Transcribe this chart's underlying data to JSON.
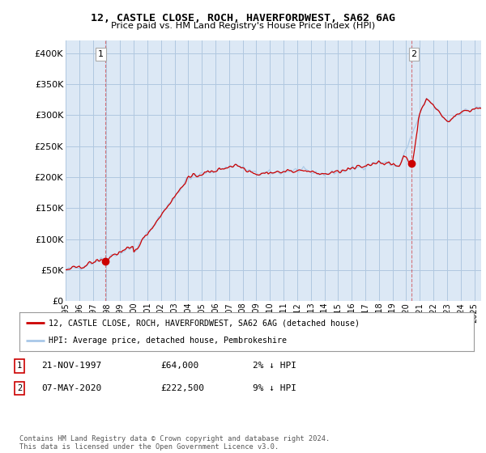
{
  "title": "12, CASTLE CLOSE, ROCH, HAVERFORDWEST, SA62 6AG",
  "subtitle": "Price paid vs. HM Land Registry's House Price Index (HPI)",
  "ytick_values": [
    0,
    50000,
    100000,
    150000,
    200000,
    250000,
    300000,
    350000,
    400000
  ],
  "ylim": [
    0,
    420000
  ],
  "xlim_start": 1995.0,
  "xlim_end": 2025.5,
  "sale1_date": 1997.9,
  "sale1_price": 64000,
  "sale2_date": 2020.37,
  "sale2_price": 222500,
  "hpi_color": "#a8c8e8",
  "sale_line_color": "#CC0000",
  "sale_dot_color": "#CC0000",
  "legend_label1": "12, CASTLE CLOSE, ROCH, HAVERFORDWEST, SA62 6AG (detached house)",
  "legend_label2": "HPI: Average price, detached house, Pembrokeshire",
  "table_row1": [
    "1",
    "21-NOV-1997",
    "£64,000",
    "2% ↓ HPI"
  ],
  "table_row2": [
    "2",
    "07-MAY-2020",
    "£222,500",
    "9% ↓ HPI"
  ],
  "footer": "Contains HM Land Registry data © Crown copyright and database right 2024.\nThis data is licensed under the Open Government Licence v3.0.",
  "xtick_years": [
    1995,
    1996,
    1997,
    1998,
    1999,
    2000,
    2001,
    2002,
    2003,
    2004,
    2005,
    2006,
    2007,
    2008,
    2009,
    2010,
    2011,
    2012,
    2013,
    2014,
    2015,
    2016,
    2017,
    2018,
    2019,
    2020,
    2021,
    2022,
    2023,
    2024,
    2025
  ],
  "background_color": "#ffffff",
  "plot_bg_color": "#dce8f5",
  "grid_color": "#b0c8e0"
}
